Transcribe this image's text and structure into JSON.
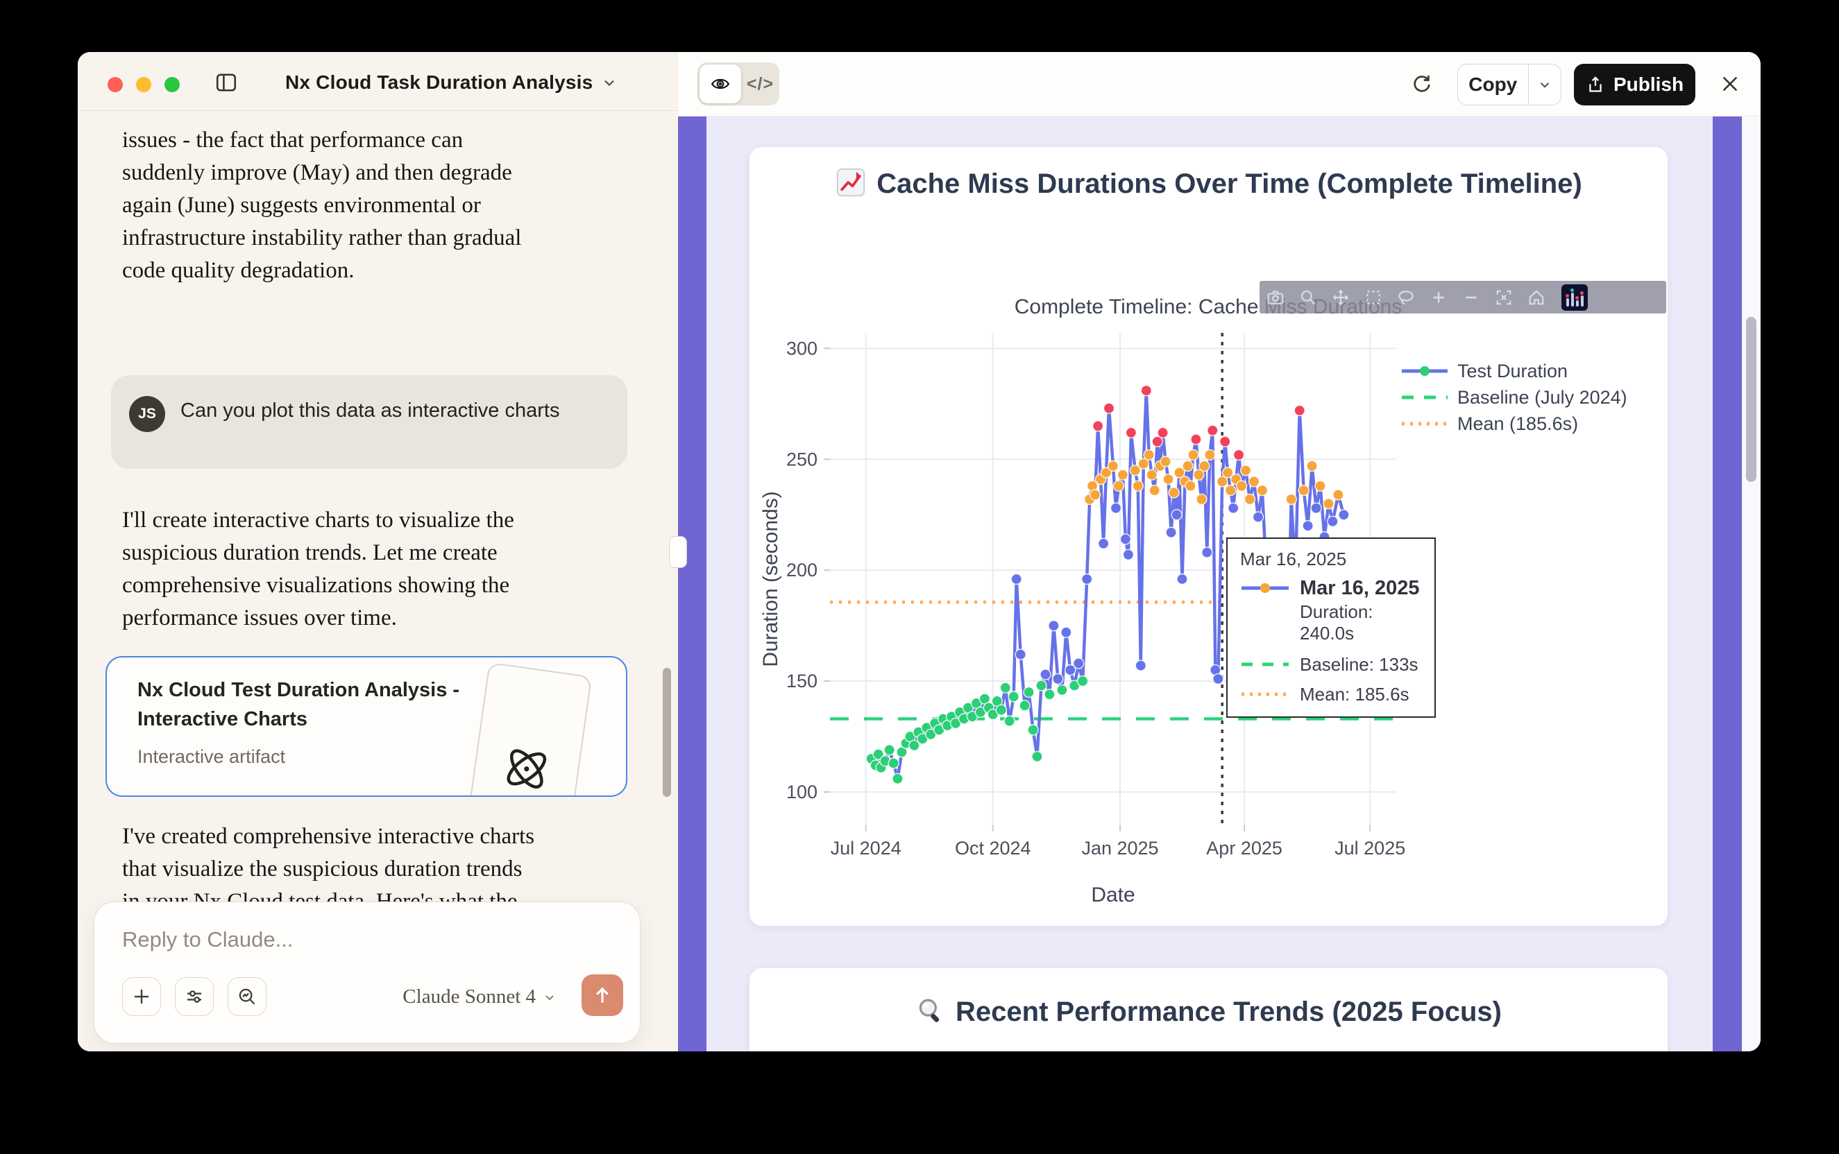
{
  "window": {
    "title": "Nx Cloud Task Duration Analysis"
  },
  "chat": {
    "p1": [
      "issues - the fact that performance can",
      "suddenly improve (May) and then degrade",
      "again (June) suggests environmental or",
      "infrastructure instability rather than gradual",
      "code quality degradation."
    ],
    "user_message": {
      "avatar_initials": "JS",
      "text": "Can you plot this data as interactive charts"
    },
    "p2": [
      "I'll create interactive charts to visualize the",
      "suspicious duration trends. Let me create",
      "comprehensive visualizations showing the",
      "performance issues over time."
    ],
    "artifact_card": {
      "title": "Nx Cloud Test Duration Analysis - Interactive Charts",
      "subtitle": "Interactive artifact"
    },
    "p3": [
      "I've created comprehensive interactive charts",
      "that visualize the suspicious duration trends",
      "in your Nx Cloud test data. Here's what the"
    ],
    "reply": {
      "placeholder": "Reply to Claude...",
      "model_label": "Claude Sonnet 4"
    }
  },
  "artifact_topbar": {
    "copy_label": "Copy",
    "publish_label": "Publish"
  },
  "cards": {
    "card1_title": "Cache Miss Durations Over Time (Complete Timeline)",
    "card2_title": "Recent Performance Trends (2025 Focus)"
  },
  "modebar_icons": [
    "camera-icon",
    "zoom-icon",
    "pan-icon",
    "box-select-icon",
    "lasso-icon",
    "zoom-in-icon",
    "zoom-out-icon",
    "autoscale-icon",
    "home-icon",
    "plotly-logo-icon"
  ],
  "colors": {
    "accent_purple": "#6f66d4",
    "artifact_bg": "#ebeaf8",
    "chat_bg": "#f9f3ee",
    "send_button": "#d98a6f",
    "publish_button": "#131210",
    "artifact_chip_border": "#4a87e8",
    "traffic_red": "#ff5f57",
    "traffic_yellow": "#febc2e",
    "traffic_green": "#29c73f",
    "heading_navy": "#2e3a50"
  },
  "chart_data": {
    "type": "line",
    "title": "Complete Timeline: Cache Miss Durations",
    "xlabel": "Date",
    "ylabel": "Duration (seconds)",
    "x_ticks": [
      {
        "label": "Jul 2024",
        "date": "2024-07-01"
      },
      {
        "label": "Oct 2024",
        "date": "2024-10-01"
      },
      {
        "label": "Jan 2025",
        "date": "2025-01-01"
      },
      {
        "label": "Apr 2025",
        "date": "2025-04-01"
      },
      {
        "label": "Jul 2025",
        "date": "2025-07-01"
      }
    ],
    "y_ticks": [
      100,
      150,
      200,
      250,
      300
    ],
    "x_domain": [
      "2024-06-05",
      "2025-07-20"
    ],
    "y_domain": [
      85,
      307
    ],
    "grid": true,
    "legend_position": "right",
    "legend": [
      {
        "label": "Test Duration",
        "style": "line-marker"
      },
      {
        "label": "Baseline (July 2024)",
        "style": "dash"
      },
      {
        "label": "Mean (185.6s)",
        "style": "dot"
      }
    ],
    "baseline_value": 133,
    "mean_value": 185.6,
    "vline_date": "2025-03-16",
    "marker_colors": {
      "g": "#2bcf78",
      "b": "#6672e8",
      "o": "#f7a539",
      "r": "#f2415a"
    },
    "line_color": "#6672e8",
    "baseline_color": "#2bd47b",
    "mean_color": "#ffa94d",
    "series": [
      {
        "name": "Test Duration",
        "points": [
          [
            "2024-07-05",
            115,
            "g"
          ],
          [
            "2024-07-08",
            112,
            "g"
          ],
          [
            "2024-07-10",
            117,
            "g"
          ],
          [
            "2024-07-12",
            111,
            "g"
          ],
          [
            "2024-07-15",
            114,
            "g"
          ],
          [
            "2024-07-18",
            119,
            "g"
          ],
          [
            "2024-07-21",
            113,
            "g"
          ],
          [
            "2024-07-24",
            106,
            "g"
          ],
          [
            "2024-07-27",
            118,
            "g"
          ],
          [
            "2024-07-30",
            122,
            "g"
          ],
          [
            "2024-08-02",
            125,
            "g"
          ],
          [
            "2024-08-05",
            121,
            "g"
          ],
          [
            "2024-08-08",
            127,
            "g"
          ],
          [
            "2024-08-11",
            124,
            "g"
          ],
          [
            "2024-08-14",
            129,
            "g"
          ],
          [
            "2024-08-17",
            126,
            "g"
          ],
          [
            "2024-08-20",
            131,
            "g"
          ],
          [
            "2024-08-23",
            128,
            "g"
          ],
          [
            "2024-08-26",
            133,
            "g"
          ],
          [
            "2024-08-29",
            130,
            "g"
          ],
          [
            "2024-09-01",
            134,
            "g"
          ],
          [
            "2024-09-04",
            131,
            "g"
          ],
          [
            "2024-09-07",
            136,
            "g"
          ],
          [
            "2024-09-10",
            133,
            "g"
          ],
          [
            "2024-09-13",
            138,
            "g"
          ],
          [
            "2024-09-16",
            134,
            "g"
          ],
          [
            "2024-09-19",
            140,
            "g"
          ],
          [
            "2024-09-22",
            136,
            "g"
          ],
          [
            "2024-09-25",
            142,
            "g"
          ],
          [
            "2024-09-28",
            138,
            "g"
          ],
          [
            "2024-10-01",
            135,
            "g"
          ],
          [
            "2024-10-04",
            141,
            "g"
          ],
          [
            "2024-10-07",
            137,
            "g"
          ],
          [
            "2024-10-10",
            147,
            "g"
          ],
          [
            "2024-10-13",
            132,
            "g"
          ],
          [
            "2024-10-16",
            143,
            "g"
          ],
          [
            "2024-10-18",
            196,
            "b"
          ],
          [
            "2024-10-21",
            162,
            "b"
          ],
          [
            "2024-10-24",
            139,
            "g"
          ],
          [
            "2024-10-27",
            145,
            "g"
          ],
          [
            "2024-10-30",
            128,
            "g"
          ],
          [
            "2024-11-02",
            116,
            "g"
          ],
          [
            "2024-11-05",
            148,
            "g"
          ],
          [
            "2024-11-08",
            153,
            "b"
          ],
          [
            "2024-11-11",
            144,
            "g"
          ],
          [
            "2024-11-14",
            175,
            "b"
          ],
          [
            "2024-11-17",
            151,
            "b"
          ],
          [
            "2024-11-20",
            146,
            "g"
          ],
          [
            "2024-11-23",
            172,
            "b"
          ],
          [
            "2024-11-26",
            155,
            "b"
          ],
          [
            "2024-11-29",
            148,
            "g"
          ],
          [
            "2024-12-02",
            158,
            "b"
          ],
          [
            "2024-12-05",
            150,
            "g"
          ],
          [
            "2024-12-08",
            196,
            "b"
          ],
          [
            "2024-12-10",
            232,
            "o"
          ],
          [
            "2024-12-12",
            238,
            "o"
          ],
          [
            "2024-12-14",
            234,
            "o"
          ],
          [
            "2024-12-16",
            265,
            "r"
          ],
          [
            "2024-12-18",
            241,
            "o"
          ],
          [
            "2024-12-20",
            212,
            "b"
          ],
          [
            "2024-12-22",
            244,
            "o"
          ],
          [
            "2024-12-24",
            273,
            "r"
          ],
          [
            "2024-12-27",
            247,
            "o"
          ],
          [
            "2024-12-29",
            228,
            "b"
          ],
          [
            "2024-12-31",
            238,
            "o"
          ],
          [
            "2025-01-03",
            243,
            "o"
          ],
          [
            "2025-01-05",
            214,
            "b"
          ],
          [
            "2025-01-07",
            207,
            "b"
          ],
          [
            "2025-01-09",
            262,
            "r"
          ],
          [
            "2025-01-12",
            245,
            "o"
          ],
          [
            "2025-01-14",
            238,
            "o"
          ],
          [
            "2025-01-16",
            157,
            "b"
          ],
          [
            "2025-01-18",
            248,
            "o"
          ],
          [
            "2025-01-20",
            281,
            "r"
          ],
          [
            "2025-01-22",
            252,
            "o"
          ],
          [
            "2025-01-24",
            243,
            "o"
          ],
          [
            "2025-01-26",
            236,
            "o"
          ],
          [
            "2025-01-28",
            258,
            "r"
          ],
          [
            "2025-01-30",
            247,
            "o"
          ],
          [
            "2025-02-01",
            262,
            "r"
          ],
          [
            "2025-02-03",
            249,
            "o"
          ],
          [
            "2025-02-05",
            241,
            "o"
          ],
          [
            "2025-02-07",
            217,
            "b"
          ],
          [
            "2025-02-09",
            235,
            "o"
          ],
          [
            "2025-02-11",
            225,
            "b"
          ],
          [
            "2025-02-13",
            244,
            "o"
          ],
          [
            "2025-02-15",
            196,
            "b"
          ],
          [
            "2025-02-17",
            240,
            "o"
          ],
          [
            "2025-02-19",
            247,
            "o"
          ],
          [
            "2025-02-21",
            238,
            "o"
          ],
          [
            "2025-02-23",
            252,
            "o"
          ],
          [
            "2025-02-25",
            259,
            "r"
          ],
          [
            "2025-02-27",
            243,
            "o"
          ],
          [
            "2025-03-01",
            232,
            "o"
          ],
          [
            "2025-03-03",
            247,
            "o"
          ],
          [
            "2025-03-05",
            208,
            "b"
          ],
          [
            "2025-03-07",
            252,
            "o"
          ],
          [
            "2025-03-09",
            263,
            "r"
          ],
          [
            "2025-03-11",
            155,
            "b"
          ],
          [
            "2025-03-13",
            151,
            "b"
          ],
          [
            "2025-03-16",
            240,
            "o"
          ],
          [
            "2025-03-18",
            258,
            "r"
          ],
          [
            "2025-03-20",
            244,
            "o"
          ],
          [
            "2025-03-22",
            236,
            "o"
          ],
          [
            "2025-03-24",
            228,
            "b"
          ],
          [
            "2025-03-26",
            241,
            "o"
          ],
          [
            "2025-03-28",
            252,
            "r"
          ],
          [
            "2025-03-30",
            238,
            "o"
          ],
          [
            "2025-04-02",
            245,
            "o"
          ],
          [
            "2025-04-05",
            232,
            "o"
          ],
          [
            "2025-04-08",
            240,
            "o"
          ],
          [
            "2025-04-11",
            224,
            "b"
          ],
          [
            "2025-04-14",
            236,
            "o"
          ],
          [
            "2025-04-17",
            198,
            "b"
          ],
          [
            "2025-04-20",
            160,
            "b"
          ],
          [
            "2025-04-23",
            147,
            "g"
          ],
          [
            "2025-04-26",
            158,
            "b"
          ],
          [
            "2025-04-29",
            143,
            "g"
          ],
          [
            "2025-05-02",
            148,
            "g"
          ],
          [
            "2025-05-05",
            232,
            "o"
          ],
          [
            "2025-05-08",
            198,
            "b"
          ],
          [
            "2025-05-11",
            272,
            "r"
          ],
          [
            "2025-05-14",
            236,
            "o"
          ],
          [
            "2025-05-17",
            220,
            "b"
          ],
          [
            "2025-05-20",
            247,
            "o"
          ],
          [
            "2025-05-23",
            228,
            "b"
          ],
          [
            "2025-05-26",
            238,
            "o"
          ],
          [
            "2025-05-29",
            215,
            "b"
          ],
          [
            "2025-06-01",
            230,
            "o"
          ],
          [
            "2025-06-04",
            222,
            "b"
          ],
          [
            "2025-06-08",
            234,
            "o"
          ],
          [
            "2025-06-12",
            225,
            "b"
          ]
        ]
      }
    ],
    "tooltip": {
      "header": "Mar 16, 2025",
      "point_label": "Mar 16, 2025",
      "duration": "Duration: 240.0s",
      "baseline": "Baseline: 133s",
      "mean": "Mean: 185.6s"
    }
  }
}
